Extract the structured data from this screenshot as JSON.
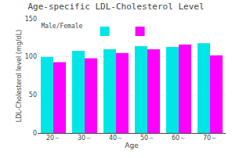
{
  "chart_data": {
    "type": "bar",
    "title": "Age-specific LDL-Cholesterol Level",
    "xlabel": "Age",
    "ylabel": "LDL-Cholesterol level (mg/dL)",
    "categories": [
      "20～",
      "30～",
      "40～",
      "50～",
      "60～",
      "70～"
    ],
    "series": [
      {
        "color": "#00E5E5",
        "values": [
          100,
          108,
          110,
          114,
          113,
          118
        ]
      },
      {
        "color": "#FF00FF",
        "values": [
          93,
          98,
          105,
          110,
          116,
          102
        ]
      }
    ],
    "legend_title": "Male/Female",
    "legend": "upper left",
    "ylim": [
      0,
      150
    ],
    "yticks": [
      0,
      50,
      100,
      150
    ],
    "grid": true
  }
}
